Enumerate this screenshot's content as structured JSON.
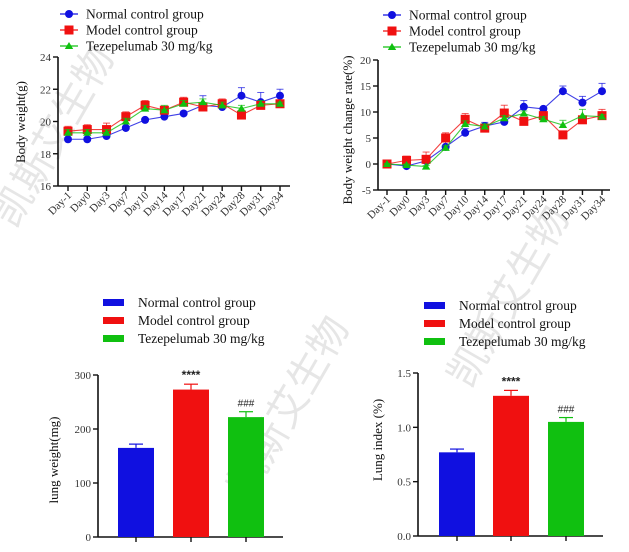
{
  "watermark_text": "凯斯艾生物",
  "colors": {
    "normal": "#1010e0",
    "model": "#f01010",
    "tezepelumab": "#10c010",
    "axis": "#111111"
  },
  "chart_data": [
    {
      "id": "body-weight",
      "type": "line",
      "title": "",
      "xlabel": "",
      "ylabel": "Body weight(g)",
      "ylim": [
        16,
        24
      ],
      "yticks": [
        "16",
        "18",
        "20",
        "22",
        "24"
      ],
      "ytick_values": [
        16,
        18,
        20,
        22,
        24
      ],
      "categories": [
        "Day-1",
        "Day0",
        "Day3",
        "Day7",
        "Day10",
        "Day14",
        "Day17",
        "Day21",
        "Day24",
        "Day28",
        "Day31",
        "Day34"
      ],
      "legend": "top-left",
      "grid": false,
      "series": [
        {
          "name": "Normal control group",
          "color_key": "normal",
          "marker": "circle",
          "values": [
            18.9,
            18.9,
            19.1,
            19.6,
            20.1,
            20.3,
            20.5,
            21.0,
            20.9,
            21.6,
            21.2,
            21.6
          ],
          "errors": [
            0.1,
            0.1,
            0.1,
            0.1,
            0.1,
            0.1,
            0.1,
            0.6,
            0.1,
            0.5,
            0.6,
            0.4
          ]
        },
        {
          "name": "Model control group",
          "color_key": "model",
          "marker": "square",
          "values": [
            19.4,
            19.5,
            19.5,
            20.3,
            21.0,
            20.7,
            21.2,
            20.9,
            21.1,
            20.4,
            21.0,
            21.1
          ],
          "errors": [
            0.3,
            0.3,
            0.4,
            0.3,
            0.3,
            0.1,
            0.3,
            0.1,
            0.3,
            0.1,
            0.1,
            0.1
          ]
        },
        {
          "name": "Tezepelumab 30 mg/kg",
          "color_key": "tezepelumab",
          "marker": "triangle",
          "values": [
            19.3,
            19.3,
            19.3,
            20.0,
            20.8,
            20.7,
            21.1,
            21.2,
            21.0,
            20.8,
            21.1,
            21.1
          ],
          "errors": [
            0.2,
            0.2,
            0.2,
            0.2,
            0.2,
            0.3,
            0.2,
            0.2,
            0.2,
            0.2,
            0.2,
            0.1
          ]
        }
      ]
    },
    {
      "id": "body-weight-change",
      "type": "line",
      "title": "",
      "xlabel": "",
      "ylabel": "Body weight change rate(%)",
      "ylim": [
        -5,
        20
      ],
      "yticks": [
        "-5",
        "0",
        "5",
        "10",
        "15",
        "20"
      ],
      "ytick_values": [
        -5,
        0,
        5,
        10,
        15,
        20
      ],
      "categories": [
        "Day-1",
        "Day0",
        "Day3",
        "Day7",
        "Day10",
        "Day14",
        "Day17",
        "Day21",
        "Day24",
        "Day28",
        "Day31",
        "Day34"
      ],
      "legend": "top-left",
      "grid": false,
      "series": [
        {
          "name": "Normal control group",
          "color_key": "normal",
          "marker": "circle",
          "values": [
            0,
            -0.4,
            0.6,
            3.3,
            6.0,
            7.3,
            8.1,
            11.0,
            10.6,
            14.0,
            11.8,
            14.0
          ],
          "errors": [
            0.1,
            0.2,
            0.3,
            1.0,
            0.8,
            0.7,
            0.3,
            1.2,
            0.2,
            1.0,
            1.2,
            1.5
          ]
        },
        {
          "name": "Model control group",
          "color_key": "model",
          "marker": "square",
          "values": [
            0,
            0.7,
            0.9,
            5.0,
            8.6,
            6.9,
            9.8,
            8.2,
            9.3,
            5.6,
            8.5,
            9.3
          ],
          "errors": [
            0.1,
            0.8,
            1.4,
            1.0,
            1.1,
            0.3,
            1.5,
            0.3,
            0.4,
            0.3,
            0.4,
            1.2
          ]
        },
        {
          "name": "Tezepelumab 30 mg/kg",
          "color_key": "tezepelumab",
          "marker": "triangle",
          "values": [
            0,
            -0.2,
            -0.5,
            3.1,
            7.7,
            7.2,
            8.8,
            9.7,
            8.6,
            7.5,
            9.3,
            9.1
          ],
          "errors": [
            0.1,
            0.2,
            0.2,
            0.4,
            0.6,
            0.5,
            0.5,
            0.5,
            0.5,
            0.9,
            1.2,
            0.4
          ]
        }
      ]
    },
    {
      "id": "lung-weight",
      "type": "bar",
      "title": "",
      "xlabel": "",
      "ylabel": "lung weight(mg)",
      "ylim": [
        0,
        300
      ],
      "yticks": [
        "0",
        "100",
        "200",
        "300"
      ],
      "ytick_values": [
        0,
        100,
        200,
        300
      ],
      "categories": [
        "Normal control group",
        "Model control group",
        "Tezepelumab 30 mg/kg"
      ],
      "values": [
        165,
        273,
        222
      ],
      "errors": [
        7,
        10,
        10
      ],
      "annotations": [
        "",
        "****",
        "###"
      ],
      "color_keys": [
        "normal",
        "model",
        "tezepelumab"
      ],
      "legend": "top",
      "grid": false
    },
    {
      "id": "lung-index",
      "type": "bar",
      "title": "",
      "xlabel": "",
      "ylabel": "Lung index (%)",
      "ylim": [
        0,
        1.5
      ],
      "yticks": [
        "0.0",
        "0.5",
        "1.0",
        "1.5"
      ],
      "ytick_values": [
        0,
        0.5,
        1.0,
        1.5
      ],
      "categories": [
        "Normal control group",
        "Model control group",
        "Tezepelumab 30 mg/kg"
      ],
      "values": [
        0.77,
        1.29,
        1.05
      ],
      "errors": [
        0.03,
        0.05,
        0.04
      ],
      "annotations": [
        "",
        "****",
        "###"
      ],
      "color_keys": [
        "normal",
        "model",
        "tezepelumab"
      ],
      "legend": "top",
      "grid": false
    }
  ]
}
